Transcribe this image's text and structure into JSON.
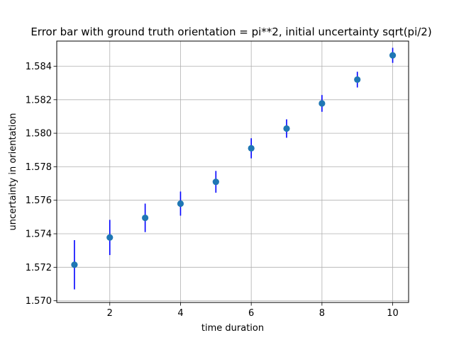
{
  "chart_data": {
    "type": "scatter",
    "title": "Error bar with ground truth orientation = pi**2, initial uncertainty sqrt(pi/2)",
    "xlabel": "time duration",
    "ylabel": "uncertainty in orientation",
    "xlim": [
      0.5,
      10.45
    ],
    "ylim": [
      1.5699,
      1.5855
    ],
    "xticks": [
      2,
      4,
      6,
      8,
      10
    ],
    "xtick_labels": [
      "2",
      "4",
      "6",
      "8",
      "10"
    ],
    "yticks": [
      1.57,
      1.572,
      1.574,
      1.576,
      1.578,
      1.58,
      1.582,
      1.584
    ],
    "ytick_labels": [
      "1.570",
      "1.572",
      "1.574",
      "1.576",
      "1.578",
      "1.580",
      "1.582",
      "1.584"
    ],
    "grid": true,
    "marker_color": "#1f77b4",
    "errorbar_color": "#0000ff",
    "series": [
      {
        "x": [
          1,
          2,
          3,
          4,
          5,
          6,
          7,
          8,
          9,
          10
        ],
        "y": [
          1.57215,
          1.57378,
          1.57495,
          1.5758,
          1.5771,
          1.5791,
          1.58028,
          1.58178,
          1.5832,
          1.58465
        ],
        "yerr": [
          0.00147,
          0.00105,
          0.00085,
          0.00072,
          0.00065,
          0.0006,
          0.00055,
          0.0005,
          0.00047,
          0.00045
        ]
      }
    ]
  }
}
